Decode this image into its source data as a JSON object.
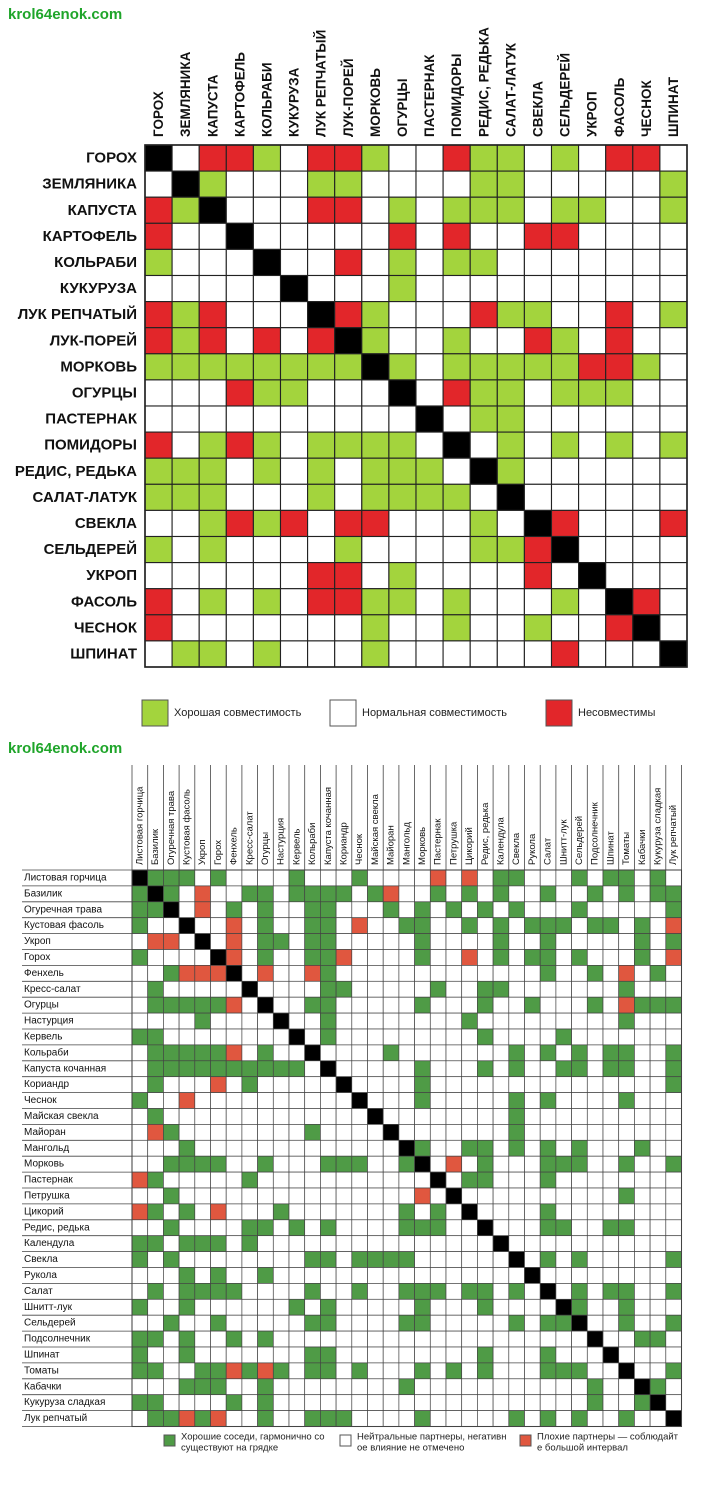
{
  "watermarks": [
    "krol64enok.com",
    "krol64enok.com"
  ],
  "colors": {
    "good1": "#a3d43d",
    "bad1": "#e2262a",
    "diag": "#000000",
    "good2": "#4f9b46",
    "bad2": "#e0573f",
    "line": "#333333"
  },
  "chart_data": [
    {
      "type": "heatmap",
      "labels": [
        "ГОРОХ",
        "ЗЕМЛЯНИКА",
        "КАПУСТА",
        "КАРТОФЕЛЬ",
        "КОЛЬРАБИ",
        "КУКУРУЗА",
        "ЛУК РЕПЧАТЫЙ",
        "ЛУК-ПОРЕЙ",
        "МОРКОВЬ",
        "ОГУРЦЫ",
        "ПАСТЕРНАК",
        "ПОМИДОРЫ",
        "РЕДИС, РЕДЬКА",
        "САЛАТ-ЛАТУК",
        "СВЕКЛА",
        "СЕЛЬДЕРЕЙ",
        "УКРОП",
        "ФАСОЛЬ",
        "ЧЕСНОК",
        "ШПИНАТ"
      ],
      "legend": [
        {
          "key": "G",
          "text": "Хорошая совместимость"
        },
        {
          "key": "N",
          "text": "Нормальная совместимость"
        },
        {
          "key": "B",
          "text": "Несовместимы"
        }
      ],
      "matrix": [
        "XNBBGNBBGNNBGGNGNBBN",
        "NXGNNNGGNNNNGGNNNNNG",
        "BGXNNNBBNGNGGGNGGNNG",
        "BNNXNNNNNBNBNNBBNNNN",
        "GNNNXNNBNGNGGNNNNNNN",
        "NNNNNXNNNGNNNNNNNNNN",
        "BGBNNNXBGNNNBGGNNBNG",
        "BGBNBNBXGNNGNNBGNBNN",
        "GGGGGGGGXGNGGGGGBBGN",
        "NNNBGGNNNXNBGGNGGGNN",
        "NNNNNNNNNNXNGGNNNNNN",
        "BNGBGNGGGGNXNGNGNGNG",
        "GGGNGNGNGGGNXGNNNNNN",
        "GGGNNNGNGGGGNXNNNNNN",
        "NNGBGBNBBNNNGNXBNNNB",
        "GNGNNNNGNNNNGGBXNNNN",
        "NNNNNNBBNGNNNNBNXNNN",
        "BNGNGNBBGGNGNNNGNXBN",
        "BNNNNNNNGNNGNNGNNBXN",
        "NGGNGNNNGNNNNNNBNNNX"
      ]
    },
    {
      "type": "heatmap",
      "labels": [
        "Листовая горчица",
        "Базилик",
        "Огуречная трава",
        "Кустовая фасоль",
        "Укроп",
        "Горох",
        "Фенхель",
        "Кресс-салат",
        "Огурцы",
        "Настурция",
        "Кервель",
        "Кольраби",
        "Капуста кочанная",
        "Кориандр",
        "Чеснок",
        "Майская свекла",
        "Майоран",
        "Мангольд",
        "Морковь",
        "Пастернак",
        "Петрушка",
        "Цикорий",
        "Редис, редька",
        "Календула",
        "Свекла",
        "Рукола",
        "Салат",
        "Шнитт-лук",
        "Сельдерей",
        "Подсолнечник",
        "Шпинат",
        "Томаты",
        "Кабачки",
        "Кукуруза сладкая",
        "Лук репчатый"
      ],
      "legend": [
        {
          "key": "G",
          "text": "Хорошие соседи, гармонично сосуществуют на грядке"
        },
        {
          "key": "N",
          "text": "Нейтральные партнеры, негативное влияние не отмечено"
        },
        {
          "key": "B",
          "text": "Плохие партнеры — соблюдайте большой интервал"
        }
      ],
      "matrix": [
        "XGGGNGNNNNGNNNGNNNNBNBNGGNNNGNGGNGN",
        "GXGNBNNGGNGGGGNGBNNGNGNGNNGNNGNGNGG",
        "GGXNBNGNGNNGGNNNGNGNGNGNGNNNGNNNNNG",
        "GNNXNNBNGNNGGNBNNGGNNGNGNGGGNGGNGNB",
        "NBBNXNBNGGNGGNNNNNGNNNNGNNGNNNNNGNG",
        "GNNNNXBNGNNGGBNNNNGNNBNGNGGNGNNNGNB",
        "NNGBBBXNBNNBGNNNNNNNNNNNNNGNNGNBNGN",
        "NGNNNNNXNNNNGGNNNNNGNNGGNNNNNNNGNNN",
        "NGGGGGBNXNNGGNNNNNGNNNGNNGNNNGNBGGG",
        "NNNNGNNNNXNNGNNNNNNNNGNNNNNNNNNGNNN",
        "GGNNNNNNNNXNGNNNNNNNNNGNNNNGNNNNNNN",
        "NGGGGGBNGNNXNNNNGNNNNNNNGNGNGNGGNNG",
        "NGGGGGGGGGGNXNNNNNGNNNGNGNNGGNGGNNG",
        "NGNNNBNGNNNNNXNNNNGNNNNNNNNNNNNNNNG",
        "GNNBNNNNNNNNNNXNNNGNNNNNGNGNNNNGNNN",
        "NGNNNNNNNNNNNNNXNNNNNNNNGNNNNNNNNNN",
        "NBGNNNNNNNNGNNNNXNNNNNNNGNNNNNNNNNN",
        "NNNGNNNNNNNNNNNNNXGNNGGNGNGNGNNNGNN",
        "NNGGGGNNGNNNGGGNNGXNBNGNNNGGGNNGNNG",
        "BGNNNNNGNNNNNNNNNNNXNGGNNNGNNNNNNNN",
        "NNGNNNNNNNNNNNNNNNBNXNNNNNNNNNNGNNN",
        "BGNGNBNNNGNNNNNNNGNGNXNNNNGNNNNNNNN",
        "NNGNNNNGGNGNGNNNNGGGNNXNNNGGNNGGNNN",
        "GGNGGGNGNNNNNNNNNNNNNNNXNNNNNNNNNNN",
        "GNGNNNNNNNNGGNGGGGNNNNNNXNGNGNNNNNG",
        "NNNGNGNNGNNNNNNNNNNNNNNNNXNNNNNNNNN",
        "NGNGGGGNNNNGNNGNNGGGNGGNGNXNGNGGNNG",
        "GNNGNNNNNNGNGNNNNNGNNNGNNNNXGNNGNNN",
        "NNGNNGNNNNNGGNNNNGGNNNNNGNGGXNNGNNG",
        "GGNGNNGNGNNNNNNNNNNNNNNNNNNNNXNNGGN",
        "GNNGNNNNNNNGGNNNNNNNNNGNNNGNNNXNNNN",
        "GGNNGGBGBGNGGNGNNNGNGNGNNNGGGNNXNNG",
        "NNNGGGNNGNNNNNNNNGNNNNNNNNNNNGNNXGN",
        "GGNNNNGNGNNNNNNNNNNNNNNNNNNNNGNNGXN",
        "NGGBGBNNGNNGGGNNNNGNNNNNGNGNGNNGNNX"
      ]
    }
  ]
}
